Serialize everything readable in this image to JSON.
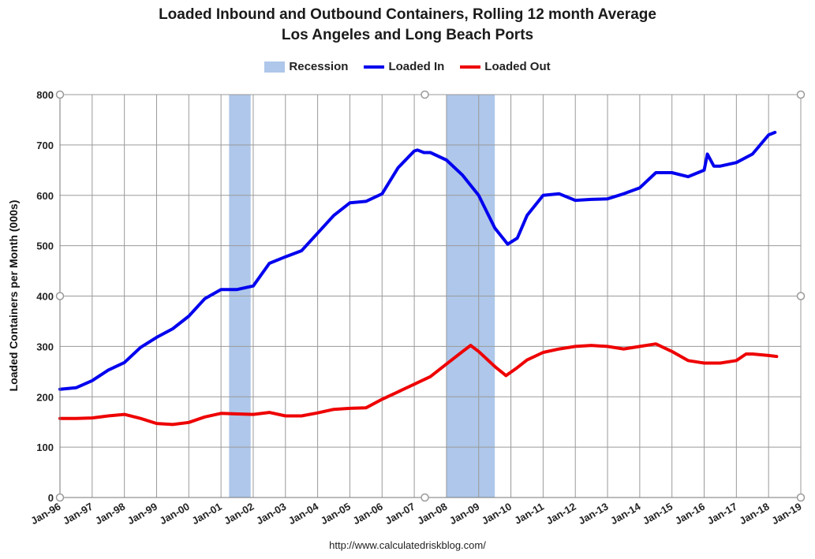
{
  "chart_data": {
    "type": "line",
    "title_line1": "Loaded Inbound and Outbound Containers, Rolling 12 month Average",
    "title_line2": "Los Angeles and Long Beach Ports",
    "xlabel": "",
    "ylabel": "Loaded Containers per Month (000s)",
    "ylim": [
      0,
      800
    ],
    "yticks": [
      0,
      100,
      200,
      300,
      400,
      500,
      600,
      700,
      800
    ],
    "xlim": [
      1996.0,
      2019.0
    ],
    "xticks": [
      "Jan-96",
      "Jan-97",
      "Jan-98",
      "Jan-99",
      "Jan-00",
      "Jan-01",
      "Jan-02",
      "Jan-03",
      "Jan-04",
      "Jan-05",
      "Jan-06",
      "Jan-07",
      "Jan-08",
      "Jan-09",
      "Jan-10",
      "Jan-11",
      "Jan-12",
      "Jan-13",
      "Jan-14",
      "Jan-15",
      "Jan-16",
      "Jan-17",
      "Jan-18",
      "Jan-19"
    ],
    "grid": true,
    "legend_position": "top-center",
    "legend": [
      {
        "label": "Recession",
        "kind": "band",
        "color": "#aec7ea"
      },
      {
        "label": "Loaded In",
        "kind": "line",
        "color": "#0000ee"
      },
      {
        "label": "Loaded Out",
        "kind": "line",
        "color": "#ee0000"
      }
    ],
    "recessions": [
      {
        "start": 2001.25,
        "end": 2001.92
      },
      {
        "start": 2008.0,
        "end": 2009.5
      }
    ],
    "series": [
      {
        "name": "Loaded In",
        "color": "#0000ee",
        "x": [
          1996.0,
          1996.5,
          1997.0,
          1997.5,
          1998.0,
          1998.5,
          1999.0,
          1999.5,
          2000.0,
          2000.5,
          2001.0,
          2001.5,
          2002.0,
          2002.5,
          2003.0,
          2003.5,
          2004.0,
          2004.5,
          2005.0,
          2005.5,
          2006.0,
          2006.5,
          2007.0,
          2007.1,
          2007.3,
          2007.5,
          2008.0,
          2008.5,
          2009.0,
          2009.5,
          2009.9,
          2010.2,
          2010.5,
          2011.0,
          2011.5,
          2012.0,
          2012.5,
          2013.0,
          2013.5,
          2014.0,
          2014.5,
          2015.0,
          2015.5,
          2016.0,
          2016.1,
          2016.3,
          2016.5,
          2017.0,
          2017.5,
          2018.0,
          2018.2
        ],
        "values": [
          215,
          218,
          232,
          253,
          268,
          298,
          318,
          335,
          360,
          395,
          413,
          413,
          420,
          465,
          478,
          490,
          525,
          560,
          585,
          588,
          603,
          655,
          688,
          690,
          685,
          685,
          670,
          640,
          600,
          535,
          503,
          515,
          560,
          600,
          603,
          590,
          592,
          593,
          603,
          615,
          645,
          645,
          637,
          650,
          682,
          658,
          658,
          665,
          682,
          720,
          725
        ]
      },
      {
        "name": "Loaded Out",
        "color": "#ee0000",
        "x": [
          1996.0,
          1996.5,
          1997.0,
          1997.5,
          1998.0,
          1998.5,
          1999.0,
          1999.5,
          2000.0,
          2000.5,
          2001.0,
          2001.5,
          2002.0,
          2002.5,
          2003.0,
          2003.5,
          2004.0,
          2004.5,
          2005.0,
          2005.5,
          2006.0,
          2006.5,
          2007.0,
          2007.5,
          2008.0,
          2008.5,
          2008.75,
          2009.0,
          2009.5,
          2009.85,
          2010.2,
          2010.5,
          2011.0,
          2011.5,
          2012.0,
          2012.5,
          2013.0,
          2013.5,
          2014.0,
          2014.5,
          2015.0,
          2015.5,
          2016.0,
          2016.5,
          2017.0,
          2017.3,
          2017.5,
          2018.0,
          2018.25
        ],
        "values": [
          157,
          157,
          158,
          162,
          165,
          157,
          147,
          145,
          149,
          160,
          167,
          166,
          165,
          169,
          162,
          162,
          168,
          175,
          177,
          178,
          195,
          210,
          225,
          240,
          265,
          290,
          302,
          290,
          260,
          242,
          258,
          273,
          288,
          295,
          300,
          302,
          300,
          295,
          300,
          305,
          290,
          272,
          267,
          267,
          272,
          285,
          285,
          282,
          280
        ]
      }
    ]
  },
  "footer": "http://www.calculatedriskblog.com/"
}
